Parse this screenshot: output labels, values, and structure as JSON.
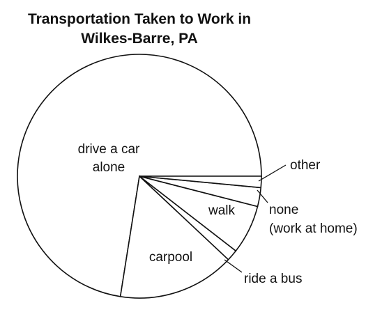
{
  "chart_data": {
    "type": "pie",
    "title_lines": [
      "Transportation Taken to Work in",
      "Wilkes-Barre, PA"
    ],
    "slices": [
      {
        "label_lines": [
          "drive a car",
          "alone"
        ],
        "value": 72.5,
        "position": "inside"
      },
      {
        "label_lines": [
          "carpool"
        ],
        "value": 15.5,
        "position": "inside"
      },
      {
        "label_lines": [
          "ride a bus"
        ],
        "value": 1.5,
        "position": "outside"
      },
      {
        "label_lines": [
          "walk"
        ],
        "value": 6.5,
        "position": "inside"
      },
      {
        "label_lines": [
          "none",
          "(work at home)"
        ],
        "value": 2.5,
        "position": "outside"
      },
      {
        "label_lines": [
          "other"
        ],
        "value": 1.5,
        "position": "outside"
      }
    ],
    "start_angle_deg": 0,
    "direction": "counterclockwise",
    "legend": "none"
  }
}
